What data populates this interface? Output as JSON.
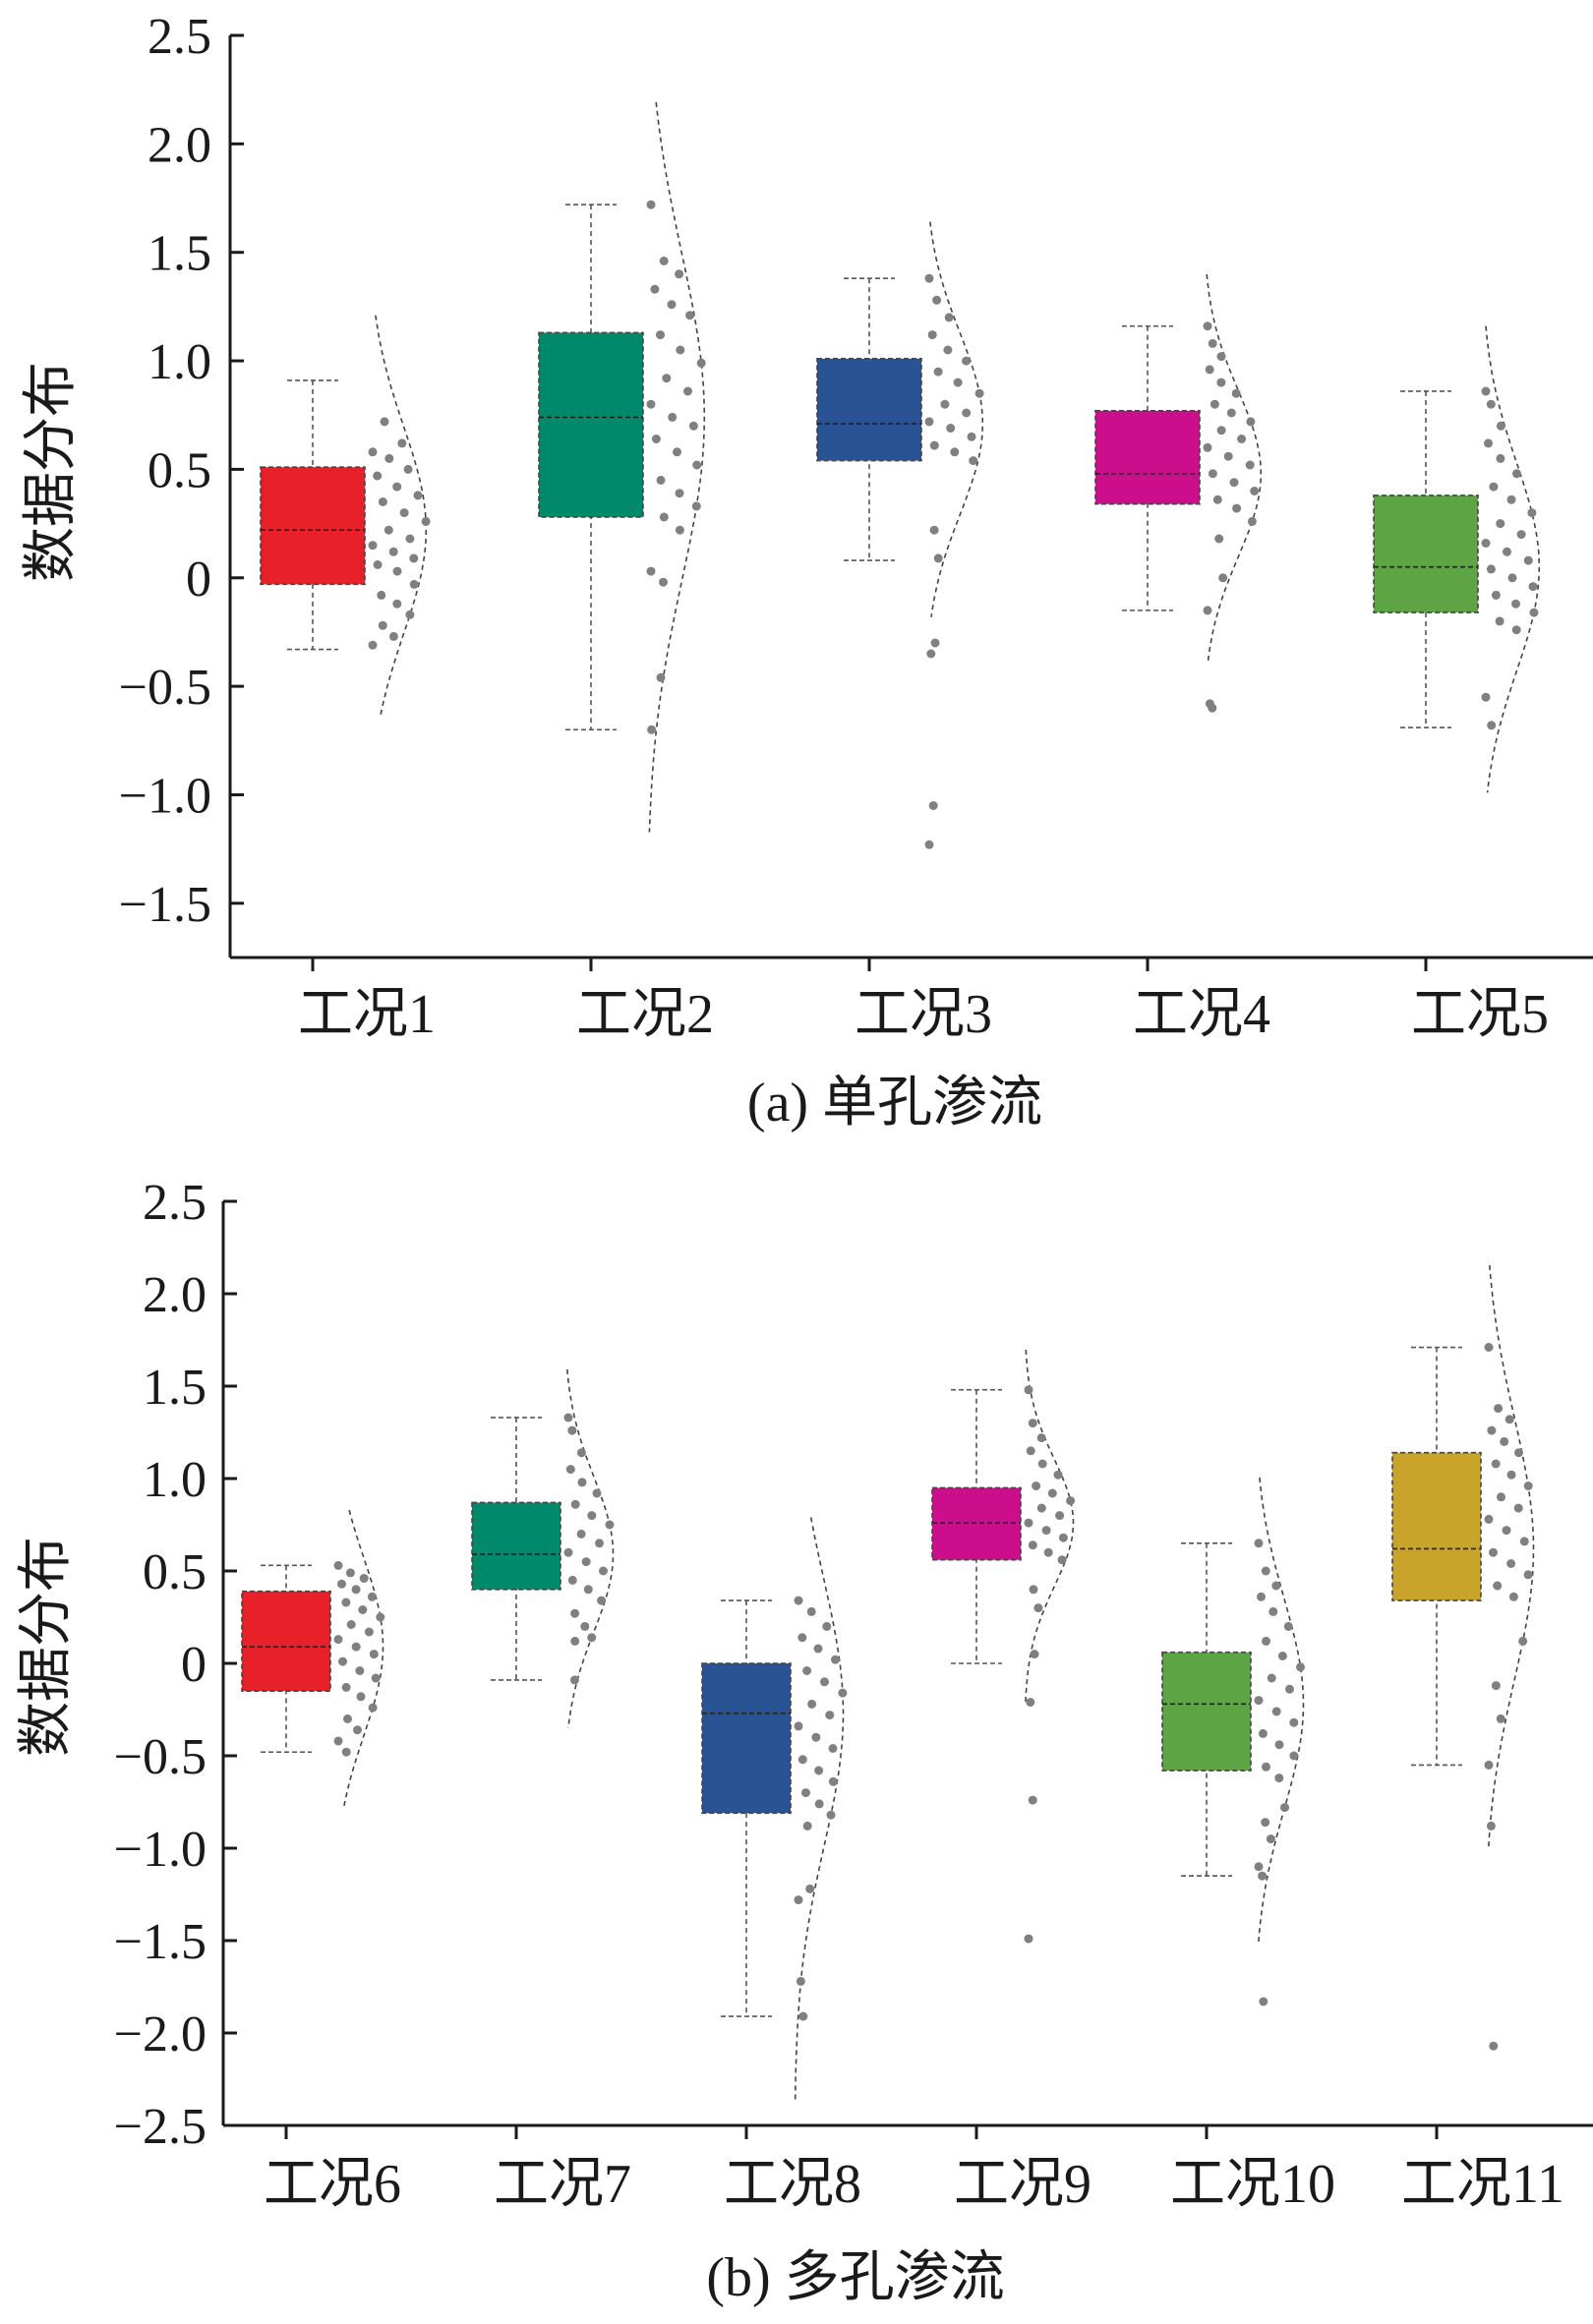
{
  "chart_data": [
    {
      "type": "box",
      "caption": "(a) 单孔渗流",
      "ylabel": "数据分布",
      "ylim": [
        -1.75,
        2.5
      ],
      "yticks": [
        {
          "value": 2.5,
          "label": "2.5"
        },
        {
          "value": 2.0,
          "label": "2.0"
        },
        {
          "value": 1.5,
          "label": "1.5"
        },
        {
          "value": 1.0,
          "label": "1.0"
        },
        {
          "value": 0.5,
          "label": "0.5"
        },
        {
          "value": 0,
          "label": "0"
        },
        {
          "value": -0.5,
          "label": "−0.5"
        },
        {
          "value": -1.0,
          "label": "−1.0"
        },
        {
          "value": -1.5,
          "label": "−1.5"
        }
      ],
      "categories": [
        "工况1",
        "工况2",
        "工况3",
        "工况4",
        "工况5"
      ],
      "boxes": [
        {
          "name": "工况1",
          "color": "#e8202a",
          "whisker_low": -0.33,
          "q1": -0.03,
          "median": 0.22,
          "q3": 0.51,
          "whisker_high": 0.91,
          "points": [
            0.58,
            0.55,
            0.5,
            0.47,
            0.42,
            0.38,
            0.35,
            0.3,
            0.26,
            0.22,
            0.18,
            0.15,
            0.12,
            0.09,
            0.06,
            0.03,
            -0.03,
            -0.08,
            -0.12,
            -0.17,
            -0.22,
            -0.27,
            -0.31,
            0.72,
            0.62
          ]
        },
        {
          "name": "工况2",
          "color": "#00896a",
          "whisker_low": -0.7,
          "q1": 0.28,
          "median": 0.74,
          "q3": 1.13,
          "whisker_high": 1.72,
          "points": [
            1.72,
            1.46,
            1.4,
            1.33,
            1.26,
            1.21,
            1.12,
            1.05,
            0.99,
            0.92,
            0.86,
            0.8,
            0.74,
            0.7,
            0.64,
            0.58,
            0.52,
            0.45,
            0.39,
            0.33,
            0.28,
            0.22,
            0.03,
            -0.02,
            -0.46,
            -0.7
          ]
        },
        {
          "name": "工况3",
          "color": "#2a5396",
          "whisker_low": 0.08,
          "q1": 0.54,
          "median": 0.71,
          "q3": 1.01,
          "whisker_high": 1.38,
          "points": [
            1.38,
            1.28,
            1.2,
            1.12,
            1.05,
            1.0,
            0.95,
            0.9,
            0.85,
            0.8,
            0.76,
            0.72,
            0.69,
            0.65,
            0.61,
            0.58,
            0.54,
            0.22,
            0.09,
            -0.3,
            -0.35,
            -1.05,
            -1.23
          ]
        },
        {
          "name": "工况4",
          "color": "#cc0e8c",
          "whisker_low": -0.15,
          "q1": 0.34,
          "median": 0.48,
          "q3": 0.77,
          "whisker_high": 1.16,
          "points": [
            1.16,
            1.08,
            1.02,
            0.96,
            0.9,
            0.85,
            0.8,
            0.76,
            0.72,
            0.68,
            0.64,
            0.6,
            0.56,
            0.52,
            0.48,
            0.44,
            0.4,
            0.36,
            0.32,
            0.26,
            0.18,
            0.0,
            -0.15,
            -0.58,
            -0.6
          ]
        },
        {
          "name": "工况5",
          "color": "#5ca444",
          "whisker_low": -0.69,
          "q1": -0.16,
          "median": 0.05,
          "q3": 0.38,
          "whisker_high": 0.86,
          "points": [
            0.86,
            0.8,
            0.7,
            0.62,
            0.55,
            0.48,
            0.42,
            0.36,
            0.3,
            0.25,
            0.2,
            0.16,
            0.12,
            0.08,
            0.04,
            0.0,
            -0.04,
            -0.08,
            -0.12,
            -0.16,
            -0.2,
            -0.24,
            -0.55,
            -0.68
          ]
        }
      ]
    },
    {
      "type": "box",
      "caption": "(b) 多孔渗流",
      "ylabel": "数据分布",
      "ylim": [
        -2.5,
        2.5
      ],
      "yticks": [
        {
          "value": 2.5,
          "label": "2.5"
        },
        {
          "value": 2.0,
          "label": "2.0"
        },
        {
          "value": 1.5,
          "label": "1.5"
        },
        {
          "value": 1.0,
          "label": "1.0"
        },
        {
          "value": 0.5,
          "label": "0.5"
        },
        {
          "value": 0,
          "label": "0"
        },
        {
          "value": -0.5,
          "label": "−0.5"
        },
        {
          "value": -1.0,
          "label": "−1.0"
        },
        {
          "value": -1.5,
          "label": "−1.5"
        },
        {
          "value": -2.0,
          "label": "−2.0"
        },
        {
          "value": -2.5,
          "label": "−2.5"
        }
      ],
      "categories": [
        "工况6",
        "工况7",
        "工况8",
        "工况9",
        "工况10",
        "工况11"
      ],
      "boxes": [
        {
          "name": "工况6",
          "color": "#e8202a",
          "whisker_low": -0.48,
          "q1": -0.15,
          "median": 0.09,
          "q3": 0.39,
          "whisker_high": 0.53,
          "points": [
            0.53,
            0.49,
            0.46,
            0.43,
            0.4,
            0.36,
            0.33,
            0.29,
            0.25,
            0.21,
            0.17,
            0.13,
            0.09,
            0.05,
            0.01,
            -0.04,
            -0.08,
            -0.13,
            -0.18,
            -0.24,
            -0.3,
            -0.36,
            -0.42,
            -0.48
          ]
        },
        {
          "name": "工况7",
          "color": "#00896a",
          "whisker_low": -0.09,
          "q1": 0.4,
          "median": 0.59,
          "q3": 0.87,
          "whisker_high": 1.33,
          "points": [
            1.33,
            1.26,
            1.14,
            1.05,
            0.98,
            0.92,
            0.86,
            0.8,
            0.75,
            0.7,
            0.65,
            0.6,
            0.55,
            0.5,
            0.45,
            0.4,
            0.34,
            0.27,
            0.2,
            0.14,
            0.12,
            -0.09
          ]
        },
        {
          "name": "工况8",
          "color": "#2a5396",
          "whisker_low": -1.91,
          "q1": -0.81,
          "median": -0.27,
          "q3": 0.0,
          "whisker_high": 0.34,
          "points": [
            0.34,
            0.28,
            0.2,
            0.14,
            0.08,
            0.02,
            -0.04,
            -0.1,
            -0.16,
            -0.22,
            -0.28,
            -0.34,
            -0.4,
            -0.46,
            -0.52,
            -0.58,
            -0.64,
            -0.7,
            -0.76,
            -0.82,
            -0.88,
            -1.22,
            -1.28,
            -1.72,
            -1.91
          ]
        },
        {
          "name": "工况9",
          "color": "#cc0e8c",
          "whisker_low": 0.0,
          "q1": 0.56,
          "median": 0.76,
          "q3": 0.95,
          "whisker_high": 1.48,
          "points": [
            1.48,
            1.3,
            1.22,
            1.15,
            1.08,
            1.02,
            0.96,
            0.92,
            0.88,
            0.84,
            0.8,
            0.76,
            0.72,
            0.68,
            0.64,
            0.6,
            0.56,
            0.4,
            0.3,
            0.05,
            -0.21,
            -0.74,
            -1.49
          ]
        },
        {
          "name": "工况10",
          "color": "#5ca444",
          "whisker_low": -1.15,
          "q1": -0.58,
          "median": -0.22,
          "q3": 0.06,
          "whisker_high": 0.65,
          "points": [
            0.65,
            0.5,
            0.42,
            0.36,
            0.28,
            0.2,
            0.12,
            0.04,
            -0.02,
            -0.08,
            -0.14,
            -0.2,
            -0.26,
            -0.32,
            -0.38,
            -0.44,
            -0.5,
            -0.56,
            -0.62,
            -0.78,
            -0.86,
            -0.95,
            -1.1,
            -1.15,
            -1.83
          ]
        },
        {
          "name": "工况11",
          "color": "#c8a42a",
          "whisker_low": -0.55,
          "q1": 0.34,
          "median": 0.62,
          "q3": 1.14,
          "whisker_high": 1.71,
          "points": [
            1.71,
            1.38,
            1.32,
            1.26,
            1.2,
            1.14,
            1.08,
            1.02,
            0.96,
            0.9,
            0.84,
            0.78,
            0.72,
            0.66,
            0.6,
            0.54,
            0.48,
            0.42,
            0.36,
            0.12,
            -0.12,
            -0.3,
            -0.55,
            -0.88,
            -2.07
          ]
        }
      ]
    }
  ]
}
